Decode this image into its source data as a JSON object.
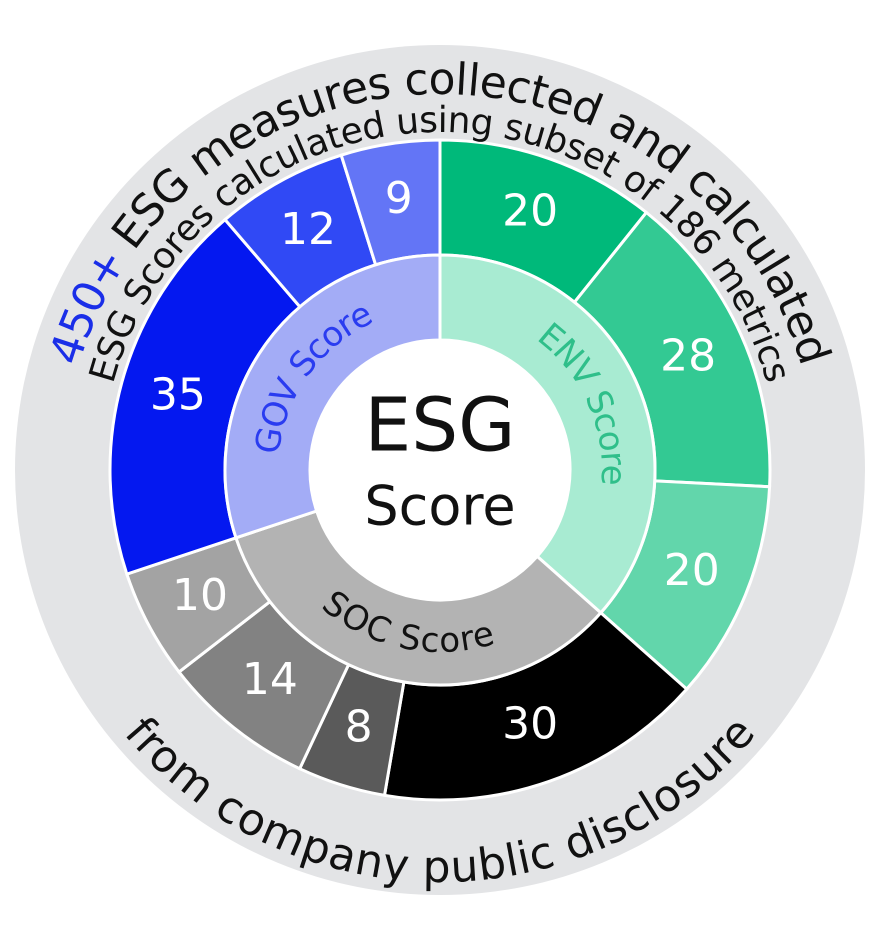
{
  "outer_text": {
    "highlight": "450+",
    "rest": "ESG measures collected and calculated"
  },
  "inner_text": "ESG Scores calculated using subset of 186 metrics",
  "bottom_text": "from company public disclosure",
  "center": {
    "line1": "ESG",
    "line2": "Score"
  },
  "groups": [
    {
      "label": "ENV Score",
      "color": "#a8ebd2",
      "label_color": "#2fbf8a",
      "segments": [
        {
          "value": 20,
          "color": "#00b97a"
        },
        {
          "value": 28,
          "color": "#33c993"
        },
        {
          "value": 20,
          "color": "#62d6ab"
        }
      ]
    },
    {
      "label": "SOC Score",
      "color": "#b3b3b3",
      "label_color": "#111111",
      "segments": [
        {
          "value": 30,
          "color": "#000000"
        },
        {
          "value": 8,
          "color": "#5a5a5a"
        },
        {
          "value": 14,
          "color": "#828282"
        },
        {
          "value": 10,
          "color": "#a3a3a3"
        }
      ]
    },
    {
      "label": "GOV Score",
      "color": "#a3acf6",
      "label_color": "#2a3cf0",
      "segments": [
        {
          "value": 35,
          "color": "#0418f0"
        },
        {
          "value": 12,
          "color": "#3049f5"
        },
        {
          "value": 9,
          "color": "#6375f6"
        }
      ]
    }
  ]
}
